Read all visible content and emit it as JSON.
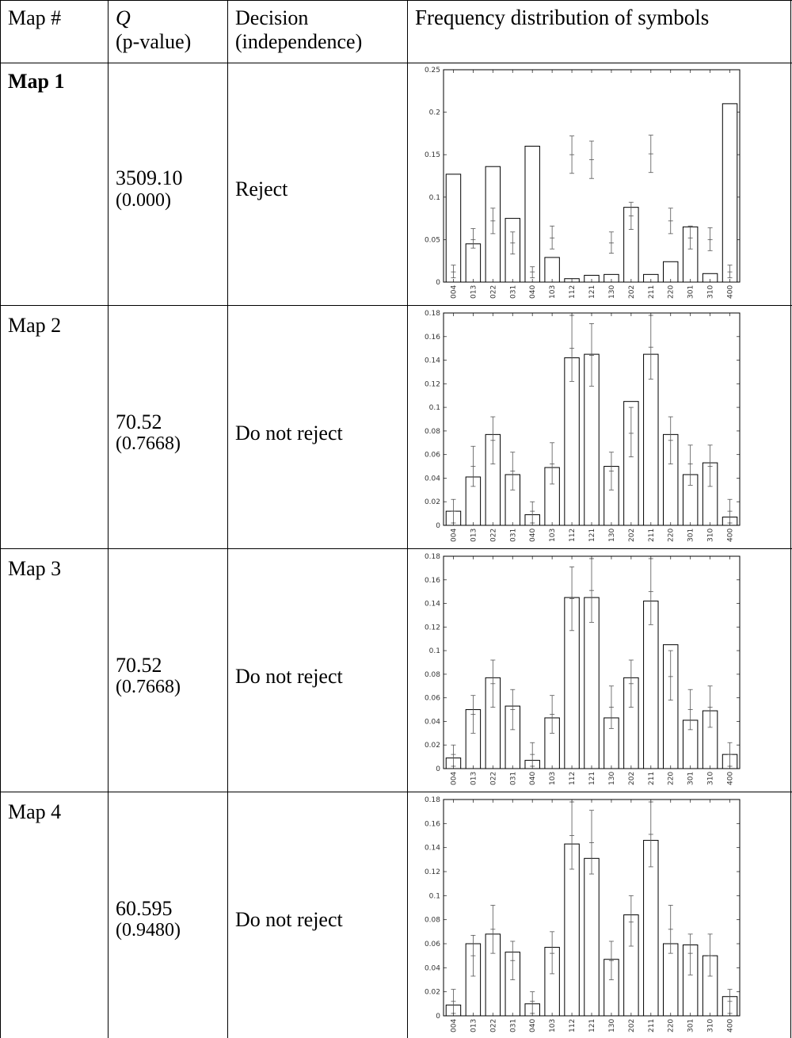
{
  "header": {
    "map_no": "Map #",
    "q_symbol": "Q",
    "q_sub": "(p-value)",
    "decision": "Decision",
    "decision_sub": "(independence)",
    "freq": "Frequency distribution of symbols"
  },
  "rows": [
    {
      "map": "Map 1",
      "q": "3509.10",
      "p": "(0.000)",
      "decision": "Reject"
    },
    {
      "map": "Map 2",
      "q": "70.52",
      "p": "(0.7668)",
      "decision": "Do not reject"
    },
    {
      "map": "Map 3",
      "q": "70.52",
      "p": "(0.7668)",
      "decision": "Do not reject"
    },
    {
      "map": "Map 4",
      "q": "60.595",
      "p": "(0.9480)",
      "decision": "Do not reject"
    }
  ],
  "chart_data": [
    {
      "type": "bar",
      "categories": [
        "004",
        "013",
        "022",
        "031",
        "040",
        "103",
        "112",
        "121",
        "130",
        "202",
        "211",
        "220",
        "301",
        "310",
        "400"
      ],
      "values": [
        0.127,
        0.045,
        0.136,
        0.075,
        0.16,
        0.029,
        0.004,
        0.008,
        0.009,
        0.088,
        0.009,
        0.024,
        0.065,
        0.01,
        0.21
      ],
      "expected": [
        0.012,
        0.05,
        0.072,
        0.046,
        0.012,
        0.052,
        0.15,
        0.144,
        0.046,
        0.078,
        0.151,
        0.072,
        0.052,
        0.05,
        0.012
      ],
      "interval_low": [
        0.005,
        0.04,
        0.057,
        0.033,
        0.005,
        0.039,
        0.128,
        0.122,
        0.034,
        0.062,
        0.129,
        0.057,
        0.039,
        0.037,
        0.005
      ],
      "interval_high": [
        0.02,
        0.063,
        0.087,
        0.059,
        0.018,
        0.066,
        0.172,
        0.166,
        0.059,
        0.094,
        0.173,
        0.087,
        0.066,
        0.064,
        0.02
      ],
      "ylim": [
        0,
        0.25
      ],
      "yticks": [
        0,
        0.05,
        0.1,
        0.15,
        0.2,
        0.25
      ],
      "ytick_labels": [
        "0",
        "0.05",
        "0.1",
        "0.15",
        "0.2",
        "0.25"
      ]
    },
    {
      "type": "bar",
      "categories": [
        "004",
        "013",
        "022",
        "031",
        "040",
        "103",
        "112",
        "121",
        "130",
        "202",
        "211",
        "220",
        "301",
        "310",
        "400"
      ],
      "values": [
        0.012,
        0.041,
        0.077,
        0.043,
        0.009,
        0.049,
        0.142,
        0.145,
        0.05,
        0.105,
        0.145,
        0.077,
        0.043,
        0.053,
        0.007
      ],
      "expected": [
        0.012,
        0.05,
        0.072,
        0.046,
        0.012,
        0.052,
        0.15,
        0.144,
        0.046,
        0.078,
        0.151,
        0.072,
        0.052,
        0.05,
        0.012
      ],
      "interval_low": [
        0.002,
        0.033,
        0.052,
        0.03,
        0.002,
        0.035,
        0.122,
        0.118,
        0.03,
        0.058,
        0.124,
        0.052,
        0.034,
        0.033,
        0.002
      ],
      "interval_high": [
        0.022,
        0.067,
        0.092,
        0.062,
        0.02,
        0.07,
        0.178,
        0.171,
        0.062,
        0.1,
        0.178,
        0.092,
        0.068,
        0.068,
        0.022
      ],
      "ylim": [
        0,
        0.18
      ],
      "yticks": [
        0,
        0.02,
        0.04,
        0.06,
        0.08,
        0.1,
        0.12,
        0.14,
        0.16,
        0.18
      ],
      "ytick_labels": [
        "0",
        "0.02",
        "0.04",
        "0.06",
        "0.08",
        "0.1",
        "0.12",
        "0.14",
        "0.16",
        "0.18"
      ]
    },
    {
      "type": "bar",
      "categories": [
        "004",
        "013",
        "022",
        "031",
        "040",
        "103",
        "112",
        "121",
        "130",
        "202",
        "211",
        "220",
        "301",
        "310",
        "400"
      ],
      "values": [
        0.009,
        0.05,
        0.077,
        0.053,
        0.007,
        0.043,
        0.145,
        0.145,
        0.043,
        0.077,
        0.142,
        0.105,
        0.041,
        0.049,
        0.012
      ],
      "expected": [
        0.012,
        0.046,
        0.072,
        0.05,
        0.012,
        0.046,
        0.144,
        0.151,
        0.052,
        0.072,
        0.15,
        0.078,
        0.05,
        0.052,
        0.012
      ],
      "interval_low": [
        0.002,
        0.03,
        0.052,
        0.033,
        0.002,
        0.03,
        0.117,
        0.124,
        0.034,
        0.052,
        0.122,
        0.058,
        0.033,
        0.035,
        0.002
      ],
      "interval_high": [
        0.02,
        0.062,
        0.092,
        0.067,
        0.022,
        0.062,
        0.171,
        0.178,
        0.07,
        0.092,
        0.178,
        0.1,
        0.067,
        0.07,
        0.022
      ],
      "ylim": [
        0,
        0.18
      ],
      "yticks": [
        0,
        0.02,
        0.04,
        0.06,
        0.08,
        0.1,
        0.12,
        0.14,
        0.16,
        0.18
      ],
      "ytick_labels": [
        "0",
        "0.02",
        "0.04",
        "0.06",
        "0.08",
        "0.1",
        "0.12",
        "0.14",
        "0.16",
        "0.18"
      ]
    },
    {
      "type": "bar",
      "categories": [
        "004",
        "013",
        "022",
        "031",
        "040",
        "103",
        "112",
        "121",
        "130",
        "202",
        "211",
        "220",
        "301",
        "310",
        "400"
      ],
      "values": [
        0.009,
        0.06,
        0.068,
        0.053,
        0.01,
        0.057,
        0.143,
        0.131,
        0.047,
        0.084,
        0.146,
        0.06,
        0.059,
        0.05,
        0.016
      ],
      "expected": [
        0.012,
        0.05,
        0.072,
        0.046,
        0.012,
        0.052,
        0.15,
        0.144,
        0.046,
        0.078,
        0.151,
        0.072,
        0.052,
        0.05,
        0.012
      ],
      "interval_low": [
        0.002,
        0.033,
        0.052,
        0.03,
        0.002,
        0.035,
        0.122,
        0.118,
        0.03,
        0.058,
        0.124,
        0.052,
        0.034,
        0.033,
        0.002
      ],
      "interval_high": [
        0.022,
        0.067,
        0.092,
        0.062,
        0.02,
        0.07,
        0.178,
        0.171,
        0.062,
        0.1,
        0.178,
        0.092,
        0.068,
        0.068,
        0.022
      ],
      "ylim": [
        0,
        0.18
      ],
      "yticks": [
        0,
        0.02,
        0.04,
        0.06,
        0.08,
        0.1,
        0.12,
        0.14,
        0.16,
        0.18
      ],
      "ytick_labels": [
        "0",
        "0.02",
        "0.04",
        "0.06",
        "0.08",
        "0.1",
        "0.12",
        "0.14",
        "0.16",
        "0.18"
      ]
    }
  ]
}
